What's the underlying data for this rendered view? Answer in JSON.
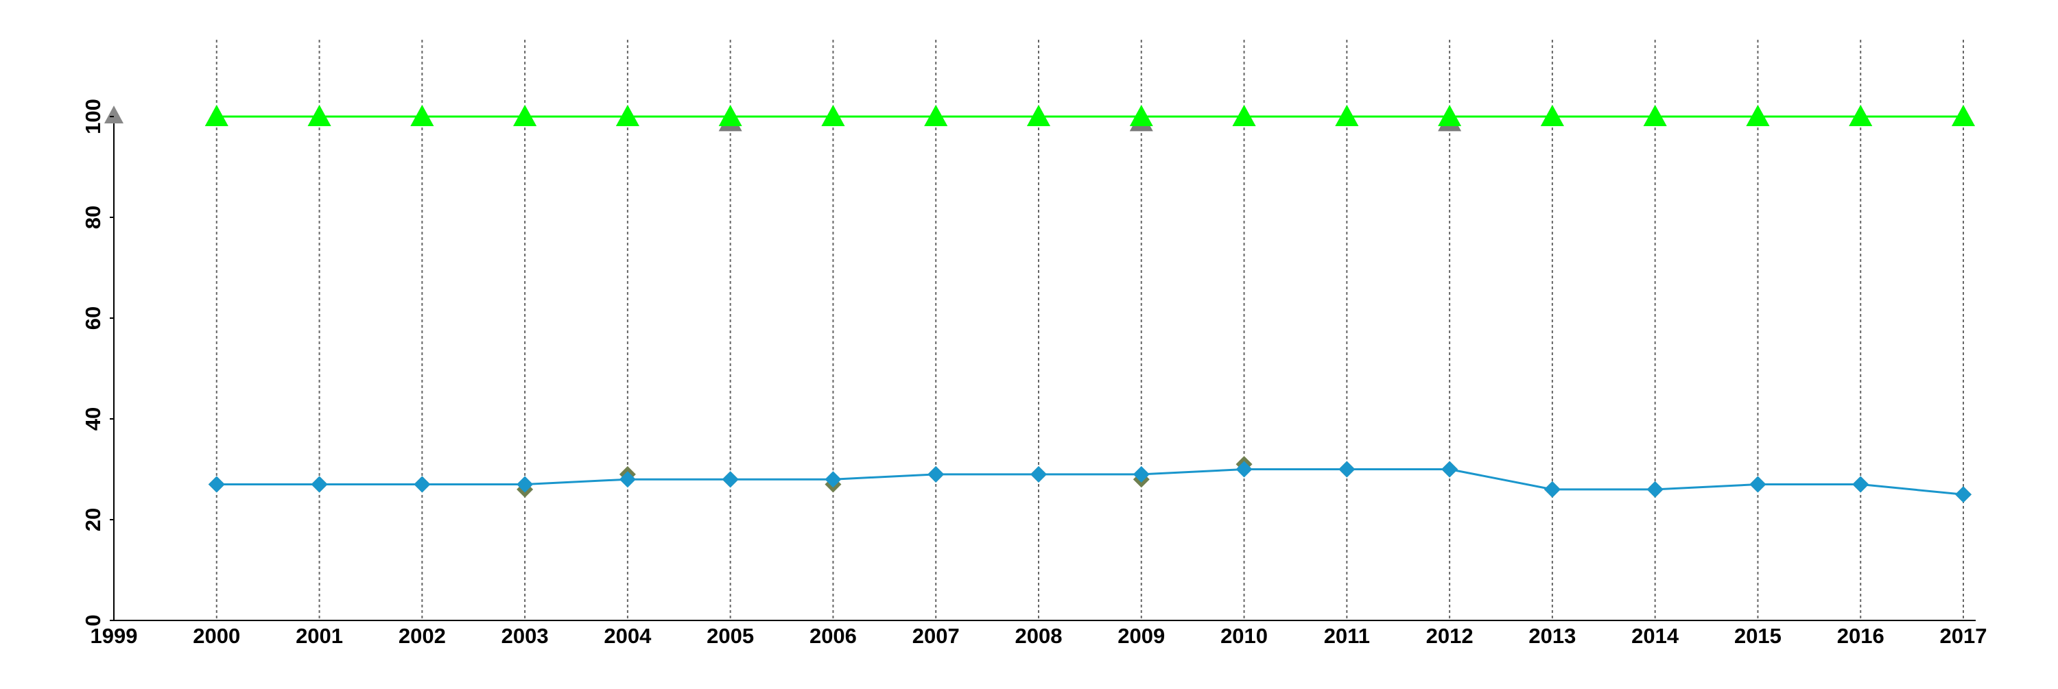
{
  "chart_data": {
    "type": "line",
    "x": [
      2000,
      2001,
      2002,
      2003,
      2004,
      2005,
      2006,
      2007,
      2008,
      2009,
      2010,
      2011,
      2012,
      2013,
      2014,
      2015,
      2016,
      2017
    ],
    "xlim": [
      1999,
      2017
    ],
    "xticks": [
      1999,
      2000,
      2001,
      2002,
      2003,
      2004,
      2005,
      2006,
      2007,
      2008,
      2009,
      2010,
      2011,
      2012,
      2013,
      2014,
      2015,
      2016,
      2017
    ],
    "ylim": [
      0,
      100
    ],
    "yticks": [
      0,
      20,
      40,
      60,
      80,
      100
    ],
    "grid": true,
    "series": [
      {
        "color": "#7a7a7a",
        "marker": "triangle",
        "line": false,
        "values": [
          100,
          100,
          100,
          100,
          100,
          99,
          100,
          100,
          100,
          99,
          100,
          100,
          99,
          100,
          100,
          100,
          100,
          100
        ]
      },
      {
        "color": "#6f7f4f",
        "marker": "diamond",
        "line": false,
        "values": [
          27,
          27,
          27,
          26,
          29,
          28,
          27,
          29,
          29,
          28,
          31,
          30,
          30,
          26,
          26,
          27,
          27,
          25
        ]
      },
      {
        "color": "#00ff00",
        "marker": "triangle",
        "line": true,
        "values": [
          100,
          100,
          100,
          100,
          100,
          100,
          100,
          100,
          100,
          100,
          100,
          100,
          100,
          100,
          100,
          100,
          100,
          100
        ]
      },
      {
        "color": "#1a96cc",
        "marker": "diamond",
        "line": true,
        "values": [
          27,
          27,
          27,
          27,
          28,
          28,
          28,
          29,
          29,
          29,
          30,
          30,
          30,
          26,
          26,
          27,
          27,
          25
        ]
      }
    ]
  }
}
